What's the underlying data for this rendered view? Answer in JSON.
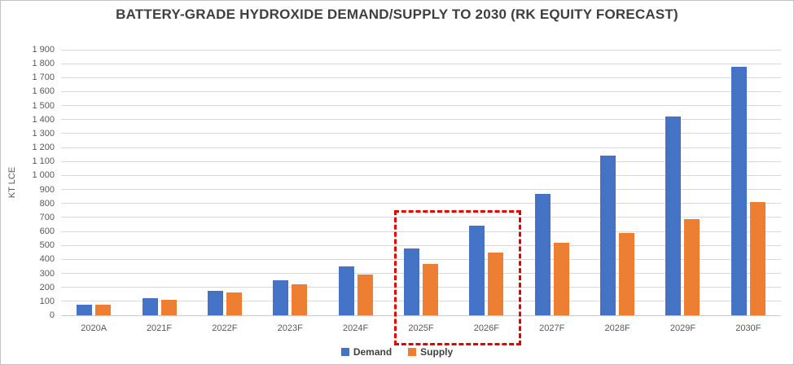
{
  "chart_data": {
    "type": "bar",
    "title": "BATTERY-GRADE HYDROXIDE DEMAND/SUPPLY TO 2030 (RK EQUITY FORECAST)",
    "ylabel": "KT LCE",
    "ylim": [
      0,
      1900
    ],
    "ytick_step": 100,
    "grid": true,
    "legend_position": "bottom",
    "categories": [
      "2020A",
      "2021F",
      "2022F",
      "2023F",
      "2024F",
      "2025F",
      "2026F",
      "2027F",
      "2028F",
      "2029F",
      "2030F"
    ],
    "series": [
      {
        "name": "Demand",
        "color": "#4472c4",
        "values": [
          75,
          120,
          175,
          250,
          350,
          480,
          640,
          870,
          1140,
          1420,
          1780
        ]
      },
      {
        "name": "Supply",
        "color": "#ed7d31",
        "values": [
          75,
          110,
          165,
          220,
          290,
          365,
          450,
          520,
          590,
          690,
          810
        ]
      }
    ],
    "highlight": {
      "start_category": "2025F",
      "end_category": "2026F",
      "color": "#e60000",
      "style": "dashed"
    }
  }
}
